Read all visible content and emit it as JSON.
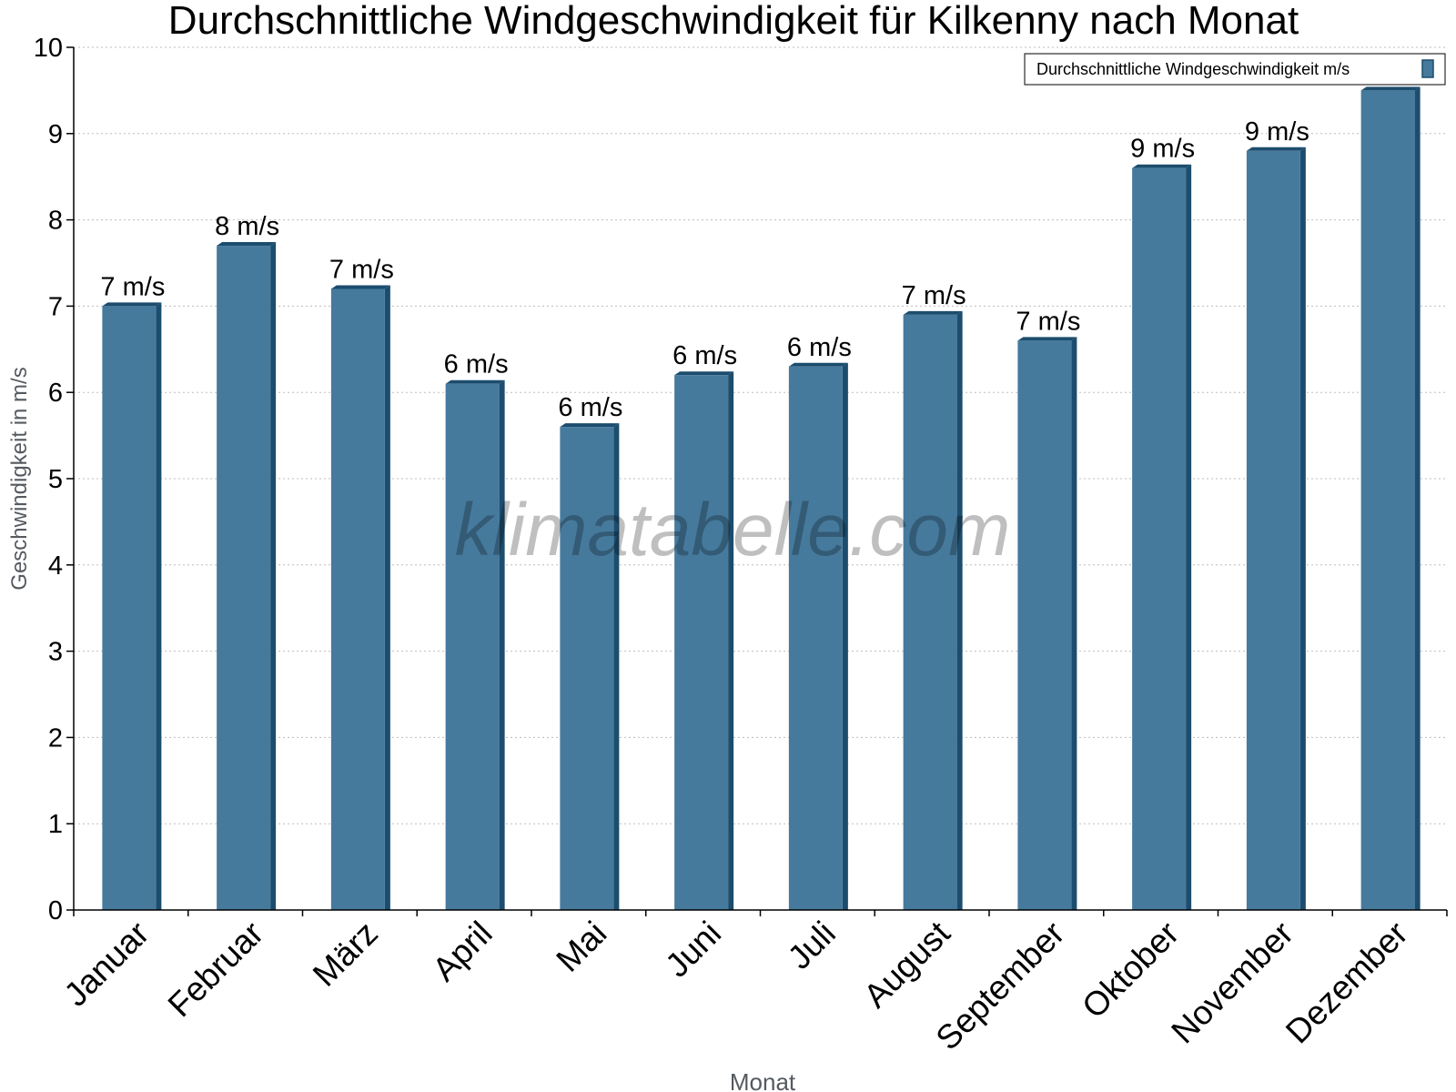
{
  "chart_data": {
    "type": "bar",
    "title": "Durchschnittliche Windgeschwindigkeit für Kilkenny nach Monat",
    "xlabel": "Monat",
    "ylabel": "Geschwindigkeit in m/s",
    "ylim": [
      0,
      10
    ],
    "yticks": [
      "0",
      "1",
      "2",
      "3",
      "4",
      "5",
      "6",
      "7",
      "8",
      "9",
      "10"
    ],
    "grid": true,
    "legend_position": "top-right",
    "categories": [
      "Januar",
      "Februar",
      "März",
      "April",
      "Mai",
      "Juni",
      "Juli",
      "August",
      "September",
      "Oktober",
      "November",
      "Dezember"
    ],
    "series": [
      {
        "name": "Durchschnittliche Windgeschwindigkeit m/s",
        "values": [
          7.0,
          7.7,
          7.2,
          6.1,
          5.6,
          6.2,
          6.3,
          6.9,
          6.6,
          8.6,
          8.8,
          9.5
        ],
        "data_labels": [
          "7 m/s",
          "8 m/s",
          "7 m/s",
          "6 m/s",
          "6 m/s",
          "6 m/s",
          "6 m/s",
          "7 m/s",
          "7 m/s",
          "9 m/s",
          "9 m/s",
          ""
        ],
        "color": "#467a9d",
        "edge_color": "#1c4d6e"
      }
    ],
    "watermark": "klimatabelle.com"
  }
}
